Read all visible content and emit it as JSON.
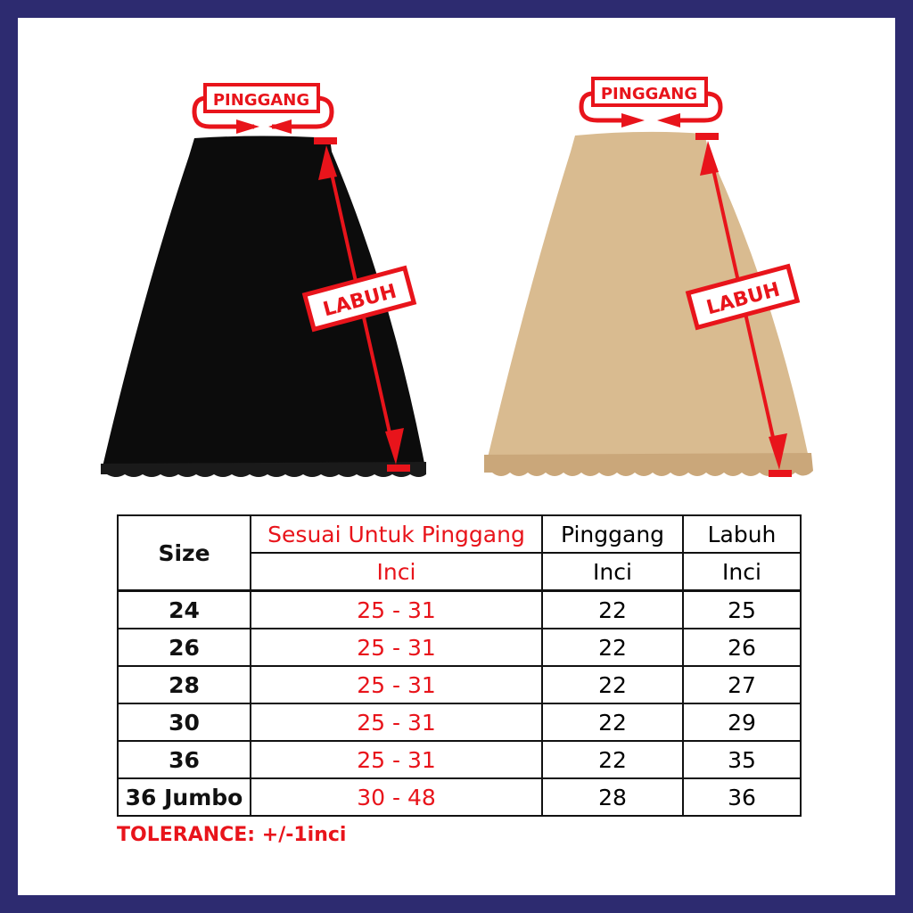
{
  "labels": {
    "waist": "PINGGANG",
    "length": "LABUH"
  },
  "colors": {
    "frame": "#2d2b70",
    "accent": "#e8141b",
    "skirt_black": "#0c0c0c",
    "skirt_beige": "#d9bb90"
  },
  "table": {
    "headers": {
      "size": "Size",
      "fit": "Sesuai Untuk Pinggang",
      "waist": "Pinggang",
      "length": "Labuh",
      "unit": "Inci"
    },
    "rows": [
      {
        "size": "24",
        "fit": "25 - 31",
        "waist": "22",
        "length": "25"
      },
      {
        "size": "26",
        "fit": "25 - 31",
        "waist": "22",
        "length": "26"
      },
      {
        "size": "28",
        "fit": "25 - 31",
        "waist": "22",
        "length": "27"
      },
      {
        "size": "30",
        "fit": "25 - 31",
        "waist": "22",
        "length": "29"
      },
      {
        "size": "36",
        "fit": "25 - 31",
        "waist": "22",
        "length": "35"
      },
      {
        "size": "36 Jumbo",
        "fit": "30 - 48",
        "waist": "28",
        "length": "36"
      }
    ]
  },
  "tolerance": "TOLERANCE: +/-1inci"
}
